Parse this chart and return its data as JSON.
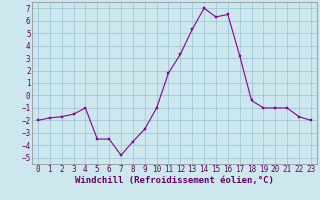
{
  "x": [
    0,
    1,
    2,
    3,
    4,
    5,
    6,
    7,
    8,
    9,
    10,
    11,
    12,
    13,
    14,
    15,
    16,
    17,
    18,
    19,
    20,
    21,
    22,
    23
  ],
  "y": [
    -2.0,
    -1.8,
    -1.7,
    -1.5,
    -1.0,
    -3.5,
    -3.5,
    -4.8,
    -3.7,
    -2.7,
    -1.0,
    1.8,
    3.3,
    5.3,
    7.0,
    6.3,
    6.5,
    3.2,
    -0.4,
    -1.0,
    -1.0,
    -1.0,
    -1.7,
    -2.0
  ],
  "line_color": "#8b008b",
  "marker_color": "#8b008b",
  "bg_color": "#cce8ee",
  "grid_color": "#a0c8d8",
  "xlabel": "Windchill (Refroidissement éolien,°C)",
  "xlim": [
    -0.5,
    23.5
  ],
  "ylim": [
    -5.5,
    7.5
  ],
  "yticks": [
    -5,
    -4,
    -3,
    -2,
    -1,
    0,
    1,
    2,
    3,
    4,
    5,
    6,
    7
  ],
  "xticks": [
    0,
    1,
    2,
    3,
    4,
    5,
    6,
    7,
    8,
    9,
    10,
    11,
    12,
    13,
    14,
    15,
    16,
    17,
    18,
    19,
    20,
    21,
    22,
    23
  ],
  "tick_label_fontsize": 5.5,
  "xlabel_fontsize": 6.5
}
